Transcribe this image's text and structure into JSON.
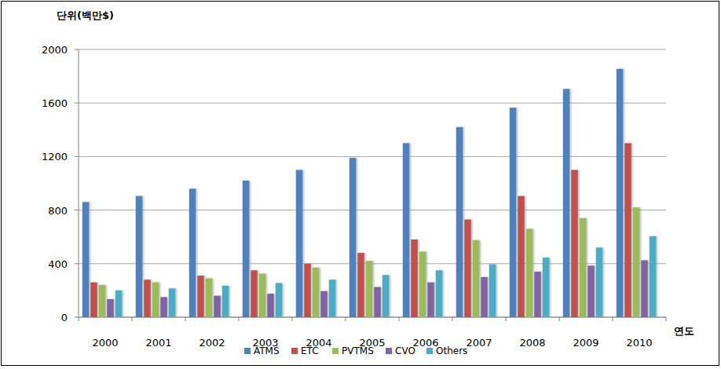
{
  "chart_data": {
    "type": "bar",
    "ylabel": "단위(백만$)",
    "xlabel": "연도",
    "categories": [
      "2000",
      "2001",
      "2002",
      "2003",
      "2004",
      "2005",
      "2006",
      "2007",
      "2008",
      "2009",
      "2010"
    ],
    "series": [
      {
        "name": "ATMS",
        "color": "#4f81bd",
        "values": [
          860,
          905,
          960,
          1020,
          1100,
          1190,
          1300,
          1420,
          1565,
          1705,
          1855
        ]
      },
      {
        "name": "ETC",
        "color": "#c0504d",
        "values": [
          260,
          280,
          310,
          350,
          400,
          480,
          580,
          730,
          905,
          1100,
          1300
        ]
      },
      {
        "name": "PVTMS",
        "color": "#9bbb59",
        "values": [
          240,
          260,
          290,
          325,
          370,
          420,
          490,
          575,
          660,
          740,
          820
        ]
      },
      {
        "name": "CVO",
        "color": "#8064a2",
        "values": [
          135,
          150,
          160,
          175,
          195,
          225,
          260,
          300,
          340,
          385,
          425
        ]
      },
      {
        "name": "Others",
        "color": "#4bacc6",
        "values": [
          200,
          215,
          235,
          255,
          280,
          315,
          350,
          395,
          445,
          520,
          605
        ]
      }
    ],
    "ylim": [
      0,
      2000
    ],
    "yticks": [
      0,
      400,
      800,
      1200,
      1600,
      2000
    ],
    "grid": true,
    "legend": "bottom"
  }
}
